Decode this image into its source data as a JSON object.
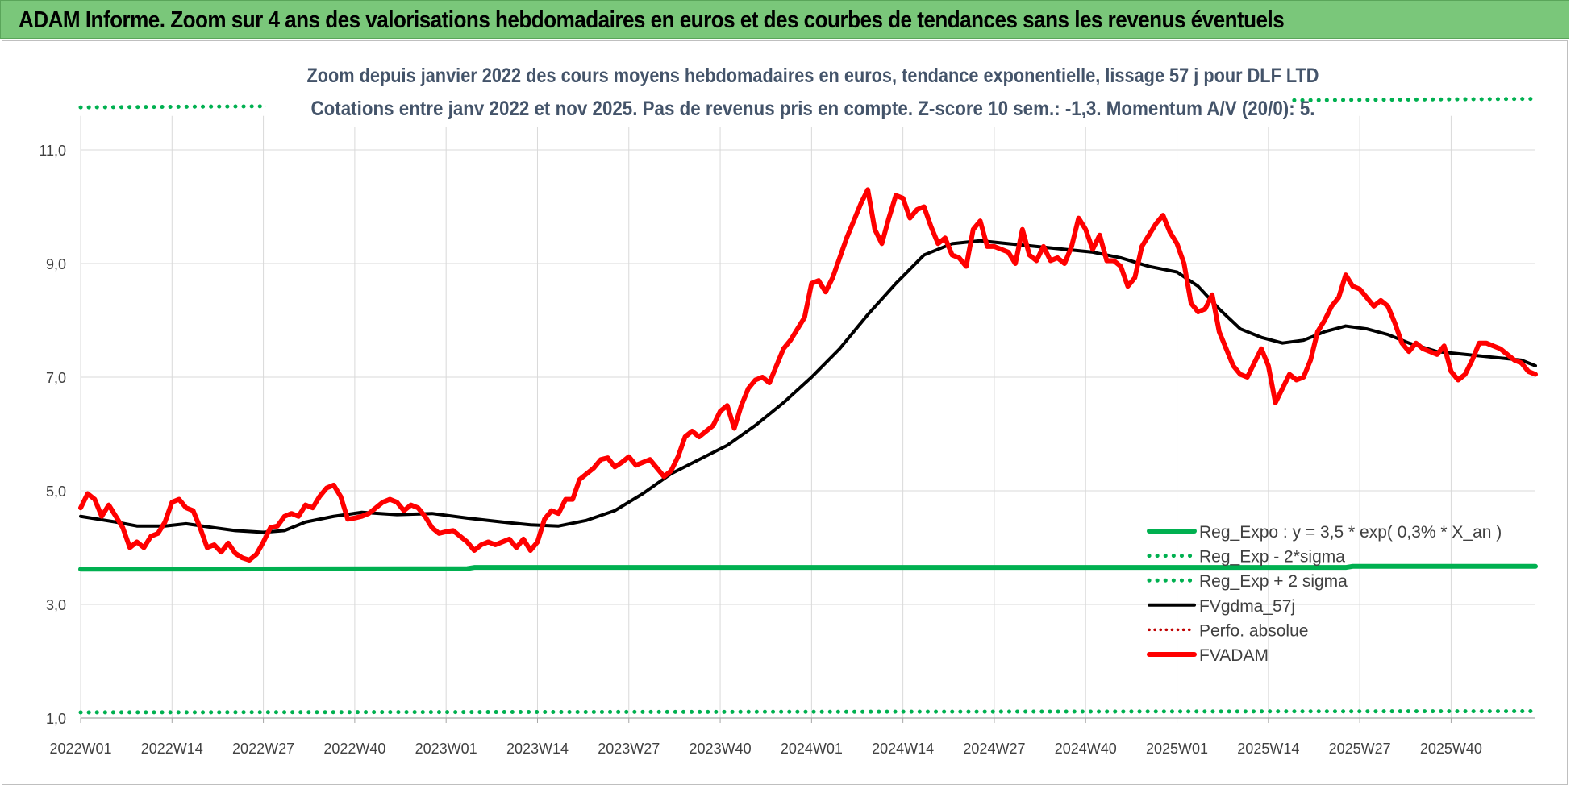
{
  "banner": {
    "title": "ADAM Informe. Zoom sur 4 ans des valorisations hebdomadaires en euros et des courbes de tendances sans les revenus éventuels"
  },
  "colors": {
    "banner_bg": "#7ac77a",
    "reg_expo": "#00b050",
    "fvadam": "#ff0000",
    "fvgdma": "#000000",
    "perfo": "#c00000",
    "grid": "#d9d9d9",
    "title_text": "#44546a"
  },
  "chart_data": {
    "type": "line",
    "title": "Zoom depuis janvier 2022 des cours moyens hebdomadaires en euros, tendance exponentielle, lissage 57 j pour DLF LTD",
    "subtitle": "Cotations entre janv 2022 et nov 2025. Pas de revenus pris en compte. Z-score 10 sem.: -1,3. Momentum A/V (20/0): 5.",
    "xlabel": "",
    "ylabel": "",
    "ylim": [
      1.0,
      11.6
    ],
    "yticks": [
      1.0,
      3.0,
      5.0,
      7.0,
      9.0,
      11.0
    ],
    "ytick_labels": [
      "1,0",
      "3,0",
      "5,0",
      "7,0",
      "9,0",
      "11,0"
    ],
    "x_count": 208,
    "xtick_indices": [
      0,
      13,
      26,
      39,
      52,
      65,
      78,
      91,
      104,
      117,
      130,
      143,
      156,
      169,
      182,
      195
    ],
    "xtick_labels": [
      "2022W01",
      "2022W14",
      "2022W27",
      "2022W40",
      "2023W01",
      "2023W14",
      "2023W27",
      "2023W40",
      "2024W01",
      "2024W14",
      "2024W27",
      "2024W40",
      "2025W01",
      "2025W14",
      "2025W27",
      "2025W40"
    ],
    "grid": true,
    "legend_position": "bottom-right",
    "series": [
      {
        "name": "Reg_Expo : y = 3,5 * exp( 0,3% *  X_an )",
        "style": "solid-green",
        "points": [
          [
            0,
            3.62
          ],
          [
            55,
            3.63
          ],
          [
            56,
            3.65
          ],
          [
            180,
            3.65
          ],
          [
            181,
            3.67
          ],
          [
            207,
            3.67
          ]
        ]
      },
      {
        "name": "Reg_Exp - 2*sigma",
        "style": "dotted-green",
        "points": [
          [
            0,
            1.1
          ],
          [
            207,
            1.12
          ]
        ]
      },
      {
        "name": "Reg_Exp + 2 sigma",
        "style": "dotted-green",
        "points": [
          [
            0,
            11.75
          ],
          [
            207,
            11.9
          ]
        ]
      },
      {
        "name": "FVgdma_57j",
        "style": "solid-black",
        "points": [
          [
            0,
            4.55
          ],
          [
            5,
            4.45
          ],
          [
            8,
            4.38
          ],
          [
            12,
            4.38
          ],
          [
            15,
            4.42
          ],
          [
            19,
            4.35
          ],
          [
            22,
            4.3
          ],
          [
            26,
            4.27
          ],
          [
            29,
            4.3
          ],
          [
            32,
            4.45
          ],
          [
            36,
            4.55
          ],
          [
            40,
            4.62
          ],
          [
            45,
            4.58
          ],
          [
            50,
            4.6
          ],
          [
            55,
            4.52
          ],
          [
            60,
            4.45
          ],
          [
            64,
            4.4
          ],
          [
            68,
            4.38
          ],
          [
            72,
            4.48
          ],
          [
            76,
            4.65
          ],
          [
            80,
            4.95
          ],
          [
            84,
            5.3
          ],
          [
            88,
            5.55
          ],
          [
            92,
            5.8
          ],
          [
            96,
            6.15
          ],
          [
            100,
            6.55
          ],
          [
            104,
            7.0
          ],
          [
            108,
            7.5
          ],
          [
            112,
            8.1
          ],
          [
            116,
            8.65
          ],
          [
            120,
            9.15
          ],
          [
            124,
            9.35
          ],
          [
            128,
            9.4
          ],
          [
            132,
            9.35
          ],
          [
            136,
            9.3
          ],
          [
            140,
            9.25
          ],
          [
            144,
            9.2
          ],
          [
            148,
            9.1
          ],
          [
            152,
            8.95
          ],
          [
            156,
            8.85
          ],
          [
            159,
            8.6
          ],
          [
            162,
            8.2
          ],
          [
            165,
            7.85
          ],
          [
            168,
            7.7
          ],
          [
            171,
            7.6
          ],
          [
            174,
            7.65
          ],
          [
            177,
            7.8
          ],
          [
            180,
            7.9
          ],
          [
            183,
            7.85
          ],
          [
            186,
            7.75
          ],
          [
            189,
            7.6
          ],
          [
            193,
            7.45
          ],
          [
            197,
            7.4
          ],
          [
            201,
            7.35
          ],
          [
            205,
            7.3
          ],
          [
            207,
            7.2
          ]
        ]
      },
      {
        "name": "Perfo. absolue",
        "style": "dotted-darkred",
        "points": []
      },
      {
        "name": "FVADAM",
        "style": "solid-red",
        "points": [
          [
            0,
            4.7
          ],
          [
            1,
            4.95
          ],
          [
            2,
            4.85
          ],
          [
            3,
            4.55
          ],
          [
            4,
            4.75
          ],
          [
            5,
            4.55
          ],
          [
            6,
            4.35
          ],
          [
            7,
            4.0
          ],
          [
            8,
            4.1
          ],
          [
            9,
            4.0
          ],
          [
            10,
            4.2
          ],
          [
            11,
            4.25
          ],
          [
            12,
            4.45
          ],
          [
            13,
            4.8
          ],
          [
            14,
            4.85
          ],
          [
            15,
            4.7
          ],
          [
            16,
            4.65
          ],
          [
            17,
            4.35
          ],
          [
            18,
            4.0
          ],
          [
            19,
            4.05
          ],
          [
            20,
            3.92
          ],
          [
            21,
            4.08
          ],
          [
            22,
            3.9
          ],
          [
            23,
            3.82
          ],
          [
            24,
            3.78
          ],
          [
            25,
            3.88
          ],
          [
            26,
            4.1
          ],
          [
            27,
            4.35
          ],
          [
            28,
            4.38
          ],
          [
            29,
            4.55
          ],
          [
            30,
            4.6
          ],
          [
            31,
            4.55
          ],
          [
            32,
            4.75
          ],
          [
            33,
            4.7
          ],
          [
            34,
            4.9
          ],
          [
            35,
            5.05
          ],
          [
            36,
            5.1
          ],
          [
            37,
            4.9
          ],
          [
            38,
            4.5
          ],
          [
            39,
            4.52
          ],
          [
            40,
            4.55
          ],
          [
            41,
            4.6
          ],
          [
            42,
            4.7
          ],
          [
            43,
            4.8
          ],
          [
            44,
            4.85
          ],
          [
            45,
            4.8
          ],
          [
            46,
            4.65
          ],
          [
            47,
            4.75
          ],
          [
            48,
            4.7
          ],
          [
            49,
            4.55
          ],
          [
            50,
            4.35
          ],
          [
            51,
            4.25
          ],
          [
            52,
            4.28
          ],
          [
            53,
            4.3
          ],
          [
            54,
            4.2
          ],
          [
            55,
            4.1
          ],
          [
            56,
            3.95
          ],
          [
            57,
            4.05
          ],
          [
            58,
            4.1
          ],
          [
            59,
            4.05
          ],
          [
            60,
            4.1
          ],
          [
            61,
            4.15
          ],
          [
            62,
            4.0
          ],
          [
            63,
            4.15
          ],
          [
            64,
            3.95
          ],
          [
            65,
            4.1
          ],
          [
            66,
            4.5
          ],
          [
            67,
            4.65
          ],
          [
            68,
            4.6
          ],
          [
            69,
            4.85
          ],
          [
            70,
            4.85
          ],
          [
            71,
            5.2
          ],
          [
            72,
            5.3
          ],
          [
            73,
            5.4
          ],
          [
            74,
            5.55
          ],
          [
            75,
            5.58
          ],
          [
            76,
            5.42
          ],
          [
            77,
            5.5
          ],
          [
            78,
            5.6
          ],
          [
            79,
            5.45
          ],
          [
            80,
            5.5
          ],
          [
            81,
            5.55
          ],
          [
            82,
            5.4
          ],
          [
            83,
            5.25
          ],
          [
            84,
            5.35
          ],
          [
            85,
            5.6
          ],
          [
            86,
            5.95
          ],
          [
            87,
            6.05
          ],
          [
            88,
            5.95
          ],
          [
            89,
            6.05
          ],
          [
            90,
            6.15
          ],
          [
            91,
            6.4
          ],
          [
            92,
            6.5
          ],
          [
            93,
            6.1
          ],
          [
            94,
            6.5
          ],
          [
            95,
            6.8
          ],
          [
            96,
            6.95
          ],
          [
            97,
            7.0
          ],
          [
            98,
            6.9
          ],
          [
            99,
            7.2
          ],
          [
            100,
            7.5
          ],
          [
            101,
            7.65
          ],
          [
            102,
            7.85
          ],
          [
            103,
            8.05
          ],
          [
            104,
            8.65
          ],
          [
            105,
            8.7
          ],
          [
            106,
            8.5
          ],
          [
            107,
            8.75
          ],
          [
            108,
            9.1
          ],
          [
            109,
            9.45
          ],
          [
            110,
            9.75
          ],
          [
            111,
            10.05
          ],
          [
            112,
            10.3
          ],
          [
            113,
            9.6
          ],
          [
            114,
            9.35
          ],
          [
            115,
            9.8
          ],
          [
            116,
            10.2
          ],
          [
            117,
            10.15
          ],
          [
            118,
            9.8
          ],
          [
            119,
            9.95
          ],
          [
            120,
            10.0
          ],
          [
            121,
            9.65
          ],
          [
            122,
            9.35
          ],
          [
            123,
            9.45
          ],
          [
            124,
            9.15
          ],
          [
            125,
            9.1
          ],
          [
            126,
            8.95
          ],
          [
            127,
            9.6
          ],
          [
            128,
            9.75
          ],
          [
            129,
            9.3
          ],
          [
            130,
            9.3
          ],
          [
            131,
            9.25
          ],
          [
            132,
            9.2
          ],
          [
            133,
            9.0
          ],
          [
            134,
            9.6
          ],
          [
            135,
            9.15
          ],
          [
            136,
            9.05
          ],
          [
            137,
            9.3
          ],
          [
            138,
            9.05
          ],
          [
            139,
            9.1
          ],
          [
            140,
            9.0
          ],
          [
            141,
            9.3
          ],
          [
            142,
            9.8
          ],
          [
            143,
            9.6
          ],
          [
            144,
            9.25
          ],
          [
            145,
            9.5
          ],
          [
            146,
            9.05
          ],
          [
            147,
            9.05
          ],
          [
            148,
            8.95
          ],
          [
            149,
            8.6
          ],
          [
            150,
            8.75
          ],
          [
            151,
            9.3
          ],
          [
            152,
            9.5
          ],
          [
            153,
            9.7
          ],
          [
            154,
            9.85
          ],
          [
            155,
            9.55
          ],
          [
            156,
            9.35
          ],
          [
            157,
            9.0
          ],
          [
            158,
            8.3
          ],
          [
            159,
            8.15
          ],
          [
            160,
            8.2
          ],
          [
            161,
            8.45
          ],
          [
            162,
            7.8
          ],
          [
            163,
            7.5
          ],
          [
            164,
            7.2
          ],
          [
            165,
            7.05
          ],
          [
            166,
            7.0
          ],
          [
            167,
            7.25
          ],
          [
            168,
            7.5
          ],
          [
            169,
            7.2
          ],
          [
            170,
            6.55
          ],
          [
            171,
            6.8
          ],
          [
            172,
            7.05
          ],
          [
            173,
            6.95
          ],
          [
            174,
            7.0
          ],
          [
            175,
            7.3
          ],
          [
            176,
            7.8
          ],
          [
            177,
            8.0
          ],
          [
            178,
            8.25
          ],
          [
            179,
            8.4
          ],
          [
            180,
            8.8
          ],
          [
            181,
            8.6
          ],
          [
            182,
            8.55
          ],
          [
            183,
            8.4
          ],
          [
            184,
            8.25
          ],
          [
            185,
            8.35
          ],
          [
            186,
            8.25
          ],
          [
            187,
            7.95
          ],
          [
            188,
            7.6
          ],
          [
            189,
            7.45
          ],
          [
            190,
            7.6
          ],
          [
            191,
            7.5
          ],
          [
            192,
            7.45
          ],
          [
            193,
            7.4
          ],
          [
            194,
            7.55
          ],
          [
            195,
            7.1
          ],
          [
            196,
            6.95
          ],
          [
            197,
            7.05
          ],
          [
            198,
            7.3
          ],
          [
            199,
            7.6
          ],
          [
            200,
            7.6
          ],
          [
            201,
            7.55
          ],
          [
            202,
            7.5
          ],
          [
            203,
            7.4
          ],
          [
            204,
            7.3
          ],
          [
            205,
            7.25
          ],
          [
            206,
            7.1
          ],
          [
            207,
            7.05
          ]
        ]
      }
    ]
  }
}
